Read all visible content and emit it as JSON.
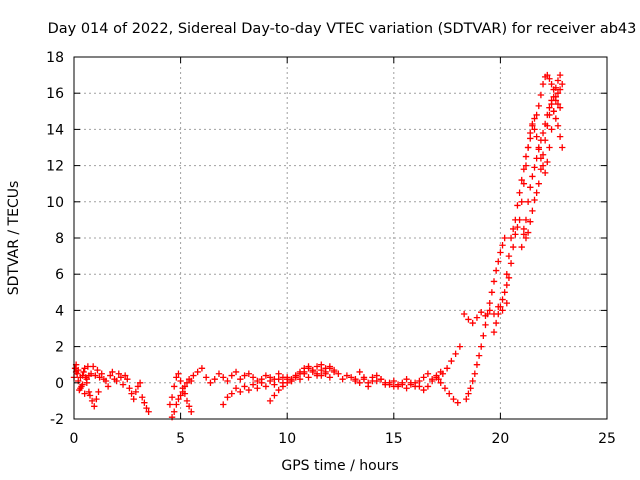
{
  "chart_data": {
    "type": "scatter",
    "title": "Day 014 of 2022, Sidereal Day-to-day VTEC variation (SDTVAR) for receiver ab43",
    "xlabel": "GPS time / hours",
    "ylabel": "SDTVAR / TECUs",
    "xlim": [
      0,
      25
    ],
    "ylim": [
      -2,
      18
    ],
    "x_ticks": [
      0,
      5,
      10,
      15,
      20,
      25
    ],
    "y_ticks": [
      -2,
      0,
      2,
      4,
      6,
      8,
      10,
      12,
      14,
      16,
      18
    ],
    "grid": true,
    "marker": "+",
    "color": "#ff0000",
    "series": [
      {
        "name": "SDTVAR",
        "x": [
          0.0,
          0.1,
          0.2,
          0.3,
          0.4,
          0.5,
          0.6,
          0.7,
          0.8,
          0.9,
          1.0,
          1.1,
          1.2,
          1.3,
          1.4,
          1.5,
          1.6,
          1.7,
          1.8,
          1.9,
          2.0,
          2.1,
          2.2,
          2.3,
          2.4,
          2.5,
          2.6,
          2.7,
          2.8,
          2.9,
          3.0,
          3.1,
          3.2,
          3.3,
          3.4,
          3.5,
          0.05,
          0.15,
          0.25,
          0.35,
          0.45,
          0.55,
          0.65,
          0.75,
          0.85,
          0.95,
          1.05,
          1.15,
          0.1,
          0.2,
          0.3,
          0.4,
          0.5,
          0.6,
          0.7,
          4.5,
          4.6,
          4.7,
          4.8,
          4.9,
          5.0,
          5.1,
          5.2,
          5.3,
          5.4,
          5.5,
          4.6,
          4.7,
          4.8,
          4.9,
          5.0,
          5.1,
          5.2,
          5.3,
          5.4,
          5.5,
          5.6,
          5.8,
          6.0,
          6.2,
          6.4,
          6.6,
          6.8,
          7.0,
          7.2,
          7.4,
          7.6,
          7.8,
          8.0,
          8.2,
          8.4,
          8.6,
          8.8,
          9.0,
          9.2,
          9.4,
          9.6,
          9.8,
          10.0,
          10.2,
          10.4,
          10.6,
          10.8,
          11.0,
          11.2,
          11.4,
          11.6,
          11.8,
          12.0,
          12.2,
          12.4,
          12.6,
          12.8,
          13.0,
          13.2,
          13.4,
          13.6,
          13.8,
          14.0,
          14.2,
          14.4,
          14.6,
          14.8,
          15.0,
          15.2,
          15.4,
          15.6,
          15.8,
          16.0,
          16.2,
          16.4,
          16.6,
          16.8,
          17.0,
          17.2,
          7.0,
          7.2,
          7.4,
          7.6,
          7.8,
          8.0,
          8.2,
          8.4,
          8.6,
          8.8,
          9.0,
          9.2,
          9.4,
          9.6,
          9.8,
          10.0,
          10.2,
          10.4,
          10.6,
          10.8,
          11.0,
          11.2,
          11.4,
          11.6,
          11.8,
          12.0,
          12.2,
          9.2,
          9.4,
          9.6,
          9.8,
          10.0,
          10.2,
          10.4,
          10.6,
          10.8,
          11.0,
          11.2,
          11.4,
          11.6,
          11.8,
          12.0,
          13.2,
          13.4,
          13.6,
          13.8,
          14.0,
          14.2,
          14.4,
          14.6,
          14.8,
          15.0,
          15.2,
          15.4,
          15.6,
          15.8,
          16.0,
          16.2,
          16.4,
          16.6,
          16.8,
          17.0,
          17.2,
          17.4,
          17.6,
          17.8,
          18.0,
          17.1,
          17.3,
          17.5,
          17.7,
          17.9,
          18.1,
          18.3,
          18.5,
          18.7,
          18.9,
          19.1,
          19.3,
          19.5,
          19.7,
          19.9,
          20.1,
          20.3,
          18.4,
          18.5,
          18.6,
          18.7,
          18.8,
          18.9,
          19.0,
          19.1,
          19.2,
          19.3,
          19.4,
          19.5,
          19.6,
          19.7,
          19.8,
          19.9,
          20.0,
          20.1,
          20.2,
          19.7,
          19.8,
          19.9,
          20.0,
          20.1,
          20.2,
          20.3,
          20.4,
          20.5,
          20.6,
          20.7,
          20.8,
          20.9,
          21.0,
          21.1,
          21.2,
          21.3,
          21.4,
          21.5,
          21.6,
          21.7,
          21.8,
          21.9,
          22.0,
          22.1,
          22.2,
          22.3,
          22.4,
          22.5,
          22.6,
          22.7,
          22.8,
          20.3,
          20.4,
          20.5,
          20.6,
          20.7,
          20.8,
          20.9,
          21.0,
          21.1,
          21.2,
          21.3,
          21.4,
          21.5,
          21.6,
          21.7,
          21.8,
          21.9,
          22.0,
          22.1,
          22.2,
          22.3,
          22.4,
          22.5,
          22.6,
          22.7,
          22.8,
          22.9,
          21.0,
          21.1,
          21.2,
          21.3,
          21.4,
          21.5,
          21.6,
          21.7,
          21.8,
          21.9,
          22.0,
          22.1,
          22.2,
          22.3,
          22.4,
          22.5,
          22.6,
          22.7,
          22.8,
          22.9,
          21.1,
          21.2,
          21.3,
          21.4,
          21.5,
          21.6,
          21.7,
          21.8,
          21.9,
          22.0,
          22.1,
          22.2,
          22.3,
          22.4,
          22.5,
          22.6,
          22.7,
          22.8
        ],
        "y": [
          0.3,
          0.6,
          0.1,
          -0.3,
          0.4,
          0.8,
          0.2,
          -0.5,
          0.5,
          0.9,
          0.4,
          0.7,
          0.3,
          0.5,
          0.2,
          0.1,
          -0.2,
          0.4,
          0.6,
          0.2,
          0.1,
          0.5,
          0.3,
          -0.1,
          0.4,
          0.2,
          -0.3,
          -0.6,
          -0.9,
          -0.5,
          -0.2,
          0.0,
          -0.8,
          -1.1,
          -1.4,
          -1.6,
          0.8,
          0.5,
          -0.4,
          -0.2,
          0.6,
          0.3,
          0.9,
          -0.7,
          -1.0,
          -1.3,
          -0.9,
          -0.5,
          1.0,
          0.7,
          0.3,
          -0.1,
          -0.6,
          0.0,
          0.4,
          -1.2,
          -0.8,
          -0.2,
          0.3,
          0.5,
          0.1,
          -0.3,
          -0.6,
          -1.0,
          -1.3,
          -1.6,
          -1.9,
          -1.6,
          -1.2,
          -0.9,
          -0.7,
          -0.5,
          -0.2,
          0.0,
          0.2,
          0.1,
          0.4,
          0.6,
          0.8,
          0.3,
          0.0,
          0.2,
          0.5,
          0.3,
          0.1,
          0.4,
          0.6,
          0.2,
          0.4,
          0.5,
          0.3,
          0.1,
          0.2,
          0.4,
          0.3,
          0.2,
          0.5,
          0.3,
          0.2,
          0.1,
          0.4,
          0.6,
          0.8,
          0.9,
          0.7,
          0.5,
          0.4,
          0.6,
          0.3,
          0.7,
          0.5,
          0.2,
          0.4,
          0.3,
          0.1,
          0.6,
          0.2,
          0.0,
          0.3,
          0.1,
          0.2,
          -0.1,
          0.0,
          0.1,
          -0.2,
          -0.1,
          0.2,
          0.0,
          -0.2,
          0.1,
          0.3,
          0.5,
          0.2,
          0.4,
          0.6,
          -1.2,
          -0.8,
          -0.6,
          -0.3,
          -0.5,
          -0.2,
          -0.4,
          -0.1,
          -0.3,
          0.0,
          -0.2,
          0.1,
          -0.1,
          0.2,
          0.0,
          0.3,
          0.1,
          0.4,
          0.2,
          0.5,
          0.3,
          0.6,
          0.4,
          0.7,
          0.5,
          0.8,
          0.6,
          -1.0,
          -0.7,
          -0.4,
          -0.2,
          0.0,
          0.2,
          0.3,
          0.5,
          0.6,
          0.8,
          0.7,
          0.9,
          1.0,
          0.8,
          0.9,
          0.2,
          0.0,
          0.3,
          -0.2,
          0.1,
          0.4,
          0.2,
          0.0,
          -0.1,
          -0.2,
          -0.1,
          0.0,
          -0.3,
          -0.1,
          0.0,
          -0.2,
          -0.4,
          -0.2,
          0.1,
          0.3,
          0.0,
          -0.3,
          -0.6,
          -0.9,
          -1.1,
          0.2,
          0.5,
          0.8,
          1.2,
          1.6,
          2.0,
          3.8,
          3.5,
          3.3,
          3.6,
          3.9,
          3.7,
          4.0,
          3.8,
          4.2,
          4.0,
          4.4,
          -0.9,
          -0.6,
          -0.3,
          0.1,
          0.5,
          1.0,
          1.5,
          2.0,
          2.6,
          3.2,
          3.8,
          4.4,
          5.0,
          5.6,
          6.2,
          6.7,
          7.2,
          7.6,
          8.0,
          2.8,
          3.3,
          3.8,
          4.2,
          4.6,
          5.0,
          5.4,
          5.8,
          6.6,
          7.5,
          8.2,
          8.6,
          9.0,
          10.0,
          11.0,
          12.0,
          13.0,
          13.8,
          14.3,
          14.6,
          14.8,
          15.3,
          15.9,
          16.5,
          16.9,
          17.0,
          16.8,
          16.5,
          16.2,
          15.8,
          15.4,
          15.2,
          6.0,
          7.0,
          8.0,
          8.5,
          9.0,
          9.8,
          10.5,
          11.2,
          11.8,
          12.5,
          13.0,
          13.5,
          14.2,
          14.0,
          13.6,
          13.0,
          12.4,
          12.0,
          11.6,
          12.2,
          13.0,
          14.0,
          15.0,
          15.6,
          16.0,
          16.2,
          16.5,
          7.5,
          8.2,
          9.0,
          10.0,
          10.8,
          11.4,
          11.9,
          12.4,
          12.9,
          13.4,
          13.8,
          14.3,
          14.8,
          15.2,
          15.6,
          15.0,
          14.6,
          14.2,
          13.6,
          13.0,
          8.5,
          8.0,
          8.3,
          8.9,
          9.5,
          10.1,
          10.5,
          11.0,
          11.8,
          12.6,
          13.4,
          14.2,
          14.8,
          15.4,
          15.8,
          16.3,
          16.7,
          17.0
        ]
      }
    ]
  }
}
